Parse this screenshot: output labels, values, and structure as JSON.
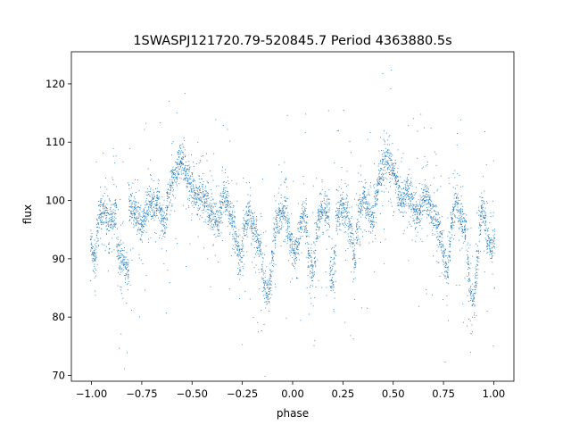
{
  "chart_data": {
    "type": "scatter",
    "title": "1SWASPJ121720.79-520845.7 Period 4363880.5s",
    "xlabel": "phase",
    "ylabel": "flux",
    "xlim": [
      -1.1,
      1.1
    ],
    "ylim": [
      69,
      125.5
    ],
    "xticks": [
      -1.0,
      -0.75,
      -0.5,
      -0.25,
      0.0,
      0.25,
      0.5,
      0.75,
      1.0
    ],
    "xtick_labels": [
      "−1.00",
      "−0.75",
      "−0.50",
      "−0.25",
      "0.00",
      "0.25",
      "0.50",
      "0.75",
      "1.00"
    ],
    "yticks": [
      70,
      80,
      90,
      100,
      110,
      120
    ],
    "ytick_labels": [
      "70",
      "80",
      "90",
      "100",
      "110",
      "120"
    ],
    "grid": false,
    "legend": "none",
    "point_color": "#1f77b4",
    "series": [
      {
        "x": [
          -1.0,
          -0.99,
          -0.98,
          -0.97,
          -0.96,
          -0.95,
          -0.94,
          -0.93,
          -0.92,
          -0.91,
          -0.9,
          -0.89,
          -0.88,
          -0.87,
          -0.86,
          -0.85,
          -0.84,
          -0.83,
          -0.82,
          -0.81,
          -0.8,
          -0.79,
          -0.78,
          -0.77,
          -0.76,
          -0.75,
          -0.74,
          -0.73,
          -0.72,
          -0.71,
          -0.7,
          -0.69,
          -0.68,
          -0.67,
          -0.66,
          -0.65,
          -0.64,
          -0.63,
          -0.62,
          -0.61,
          -0.6,
          -0.59,
          -0.58,
          -0.57,
          -0.56,
          -0.55,
          -0.54,
          -0.53,
          -0.52,
          -0.51,
          -0.5,
          -0.49,
          -0.48,
          -0.47,
          -0.46,
          -0.45,
          -0.44,
          -0.43,
          -0.42,
          -0.41,
          -0.4,
          -0.39,
          -0.38,
          -0.37,
          -0.36,
          -0.35,
          -0.34,
          -0.33,
          -0.32,
          -0.31,
          -0.3,
          -0.29,
          -0.28,
          -0.27,
          -0.26,
          -0.25,
          -0.24,
          -0.23,
          -0.22,
          -0.21,
          -0.2,
          -0.19,
          -0.18,
          -0.17,
          -0.16,
          -0.15,
          -0.14,
          -0.13,
          -0.12,
          -0.11,
          -0.1,
          -0.09,
          -0.08,
          -0.07,
          -0.06,
          -0.05,
          -0.04,
          -0.03,
          -0.02,
          -0.01,
          0.0,
          0.01,
          0.02,
          0.03,
          0.04,
          0.05,
          0.06,
          0.07,
          0.08,
          0.09,
          0.1,
          0.11,
          0.12,
          0.13,
          0.14,
          0.15,
          0.16,
          0.17,
          0.18,
          0.19,
          0.2,
          0.21,
          0.22,
          0.23,
          0.24,
          0.25,
          0.26,
          0.27,
          0.28,
          0.29,
          0.3,
          0.31,
          0.32,
          0.33,
          0.34,
          0.35,
          0.36,
          0.37,
          0.38,
          0.39,
          0.4,
          0.41,
          0.42,
          0.43,
          0.44,
          0.45,
          0.46,
          0.47,
          0.48,
          0.49,
          0.5,
          0.51,
          0.52,
          0.53,
          0.54,
          0.55,
          0.56,
          0.57,
          0.58,
          0.59,
          0.6,
          0.61,
          0.62,
          0.63,
          0.64,
          0.65,
          0.66,
          0.67,
          0.68,
          0.69,
          0.7,
          0.71,
          0.72,
          0.73,
          0.74,
          0.75,
          0.76,
          0.77,
          0.78,
          0.79,
          0.8,
          0.81,
          0.82,
          0.83,
          0.84,
          0.85,
          0.86,
          0.87,
          0.88,
          0.89,
          0.9,
          0.91,
          0.92,
          0.93,
          0.94,
          0.95,
          0.96,
          0.97,
          0.98,
          0.99,
          1.0
        ],
        "y_mean": [
          92,
          90,
          90,
          95,
          97,
          98,
          98,
          98,
          97,
          97,
          97,
          97,
          98,
          92,
          90,
          90,
          89,
          88,
          88,
          98,
          99,
          98,
          98,
          97,
          96,
          95,
          97,
          98,
          99,
          100,
          100,
          99,
          99,
          100,
          98,
          97,
          96,
          97,
          101,
          102,
          103,
          104,
          105,
          106,
          107,
          107,
          106,
          105,
          104,
          103,
          102,
          101,
          100,
          100,
          101,
          101,
          100,
          100,
          99,
          98,
          98,
          97,
          97,
          96,
          98,
          99,
          101,
          100,
          99,
          98,
          97,
          95,
          93,
          91,
          90,
          92,
          95,
          97,
          98,
          97,
          96,
          95,
          94,
          93,
          92,
          88,
          85,
          84,
          84,
          86,
          90,
          94,
          96,
          97,
          97,
          98,
          99,
          97,
          95,
          93,
          92,
          91,
          92,
          93,
          96,
          98,
          97,
          96,
          90,
          89,
          88,
          90,
          95,
          97,
          98,
          98,
          98,
          98,
          98,
          88,
          87,
          90,
          97,
          98,
          99,
          98,
          97,
          98,
          96,
          94,
          92,
          90,
          95,
          98,
          99,
          100,
          100,
          99,
          98,
          97,
          97,
          100,
          102,
          104,
          105,
          106,
          107,
          107,
          107,
          106,
          105,
          104,
          103,
          101,
          100,
          100,
          101,
          102,
          101,
          100,
          99,
          98,
          97,
          98,
          99,
          100,
          101,
          100,
          99,
          98,
          97,
          97,
          96,
          95,
          93,
          91,
          89,
          88,
          92,
          96,
          98,
          99,
          99,
          98,
          97,
          96,
          95,
          90,
          86,
          84,
          83,
          86,
          90,
          96,
          99,
          98,
          96,
          93,
          92,
          91,
          93
        ]
      }
    ]
  }
}
